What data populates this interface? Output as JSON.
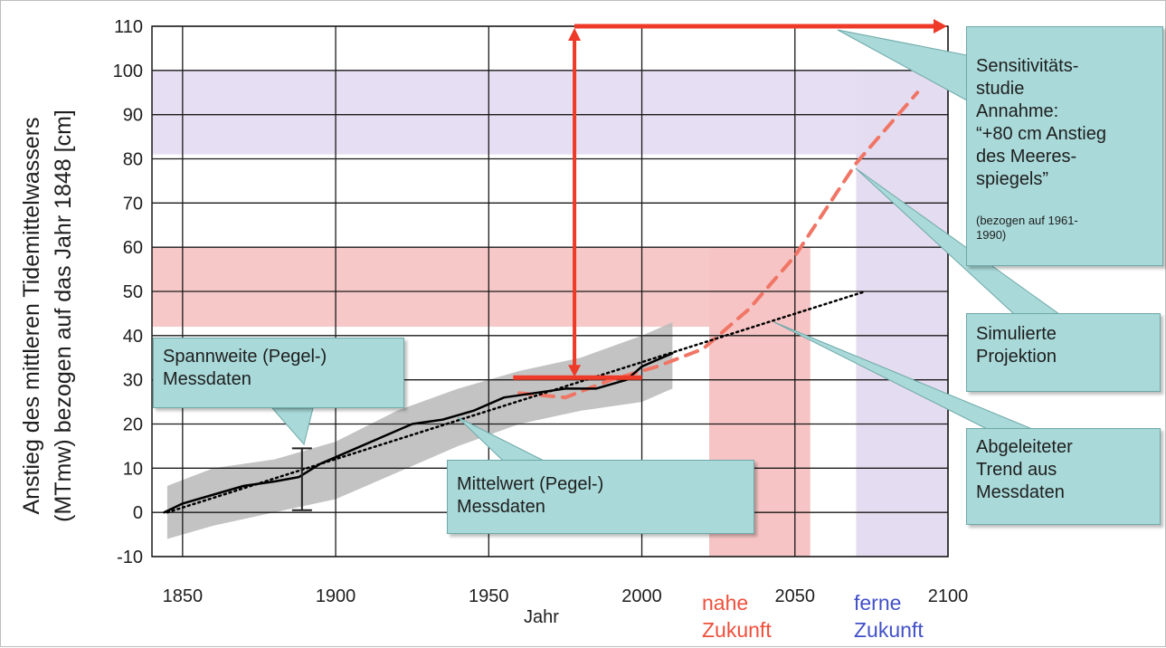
{
  "chart_data": {
    "type": "line",
    "ylabel_line1": "Anstieg des mittleren Tidemittelwassers",
    "ylabel_line2": "(MTmw) bezogen auf das Jahr 1848 [cm]",
    "xlabel": "Jahr",
    "xlim": [
      1840,
      2100
    ],
    "ylim": [
      -10,
      110
    ],
    "x_ticks": [
      1850,
      1900,
      1950,
      2000,
      2050,
      2100
    ],
    "y_ticks": [
      -10,
      0,
      10,
      20,
      30,
      40,
      50,
      60,
      70,
      80,
      90,
      100,
      110
    ],
    "x_tick_labels": [
      "1850",
      "1900",
      "1950",
      "2000",
      "2050",
      "2100"
    ],
    "y_tick_labels": [
      "-10",
      "0",
      "10",
      "20",
      "30",
      "40",
      "50",
      "60",
      "70",
      "80",
      "90",
      "100",
      "110"
    ],
    "grid": true,
    "series": [
      {
        "role": "mean",
        "color": "#000000",
        "x": [
          1844,
          1850,
          1860,
          1870,
          1880,
          1888,
          1895,
          1905,
          1915,
          1925,
          1935,
          1945,
          1955,
          1965,
          1975,
          1985,
          1995,
          2000,
          2010
        ],
        "y": [
          0,
          2,
          4,
          6,
          7,
          8,
          11,
          14,
          17,
          20,
          21,
          23,
          26,
          27,
          28,
          28,
          30,
          33,
          36
        ]
      },
      {
        "role": "trend",
        "color": "#000000",
        "style": "dotted",
        "x": [
          1845,
          2073
        ],
        "y": [
          0,
          50
        ]
      },
      {
        "role": "projection",
        "color": "#f07565",
        "style": "dashed",
        "x": [
          1960,
          1975,
          1990,
          2005,
          2020,
          2035,
          2050,
          2070,
          2090
        ],
        "y": [
          27,
          26,
          30,
          33,
          37,
          46,
          58,
          79,
          95
        ]
      }
    ],
    "range_band": {
      "color": "#b9b9b9",
      "x": [
        1845,
        1860,
        1880,
        1900,
        1920,
        1940,
        1960,
        1980,
        2000,
        2010
      ],
      "upper": [
        6,
        10,
        12,
        16,
        23,
        28,
        32,
        35,
        40,
        43
      ],
      "lower": [
        -6,
        -3,
        0,
        3,
        9,
        15,
        20,
        23,
        25,
        28
      ]
    },
    "error_bar": {
      "x": 1889,
      "low": 0.5,
      "high": 14.5
    },
    "regions": {
      "near_future": {
        "x": [
          2022,
          2055
        ],
        "color": "#f6c4c4"
      },
      "far_future": {
        "x": [
          2070,
          2100
        ],
        "color": "#e4dcf0"
      },
      "red_band_y": [
        42,
        60
      ],
      "lilac_band_y": [
        81,
        100
      ]
    },
    "sensitivity_arrow": {
      "color": "#ee3a28",
      "x_vertical": 1978,
      "y_low": 30.5,
      "y_high": 110,
      "x_end": 2100,
      "base_x": [
        1958,
        2000
      ]
    }
  },
  "labels": {
    "near_future": [
      "nahe",
      "Zukunft"
    ],
    "far_future": [
      "ferne",
      "Zukunft"
    ],
    "near_color": "#ef4f3c",
    "far_color": "#4250c8"
  },
  "callouts": {
    "spannweite": "Spannweite (Pegel-)\nMessdaten",
    "mittelwert": "Mittelwert (Pegel-)\nMessdaten",
    "sensitivity": "Sensitivitäts-\nstudie\nAnnahme:\n“+80 cm Anstieg\ndes Meeres-\nspiegels”",
    "sensitivity_note": "(bezogen auf 1961-\n1990)",
    "simulated": "Simulierte\nProjektion",
    "trend": "Abgeleiteter\nTrend aus\nMessdaten"
  }
}
